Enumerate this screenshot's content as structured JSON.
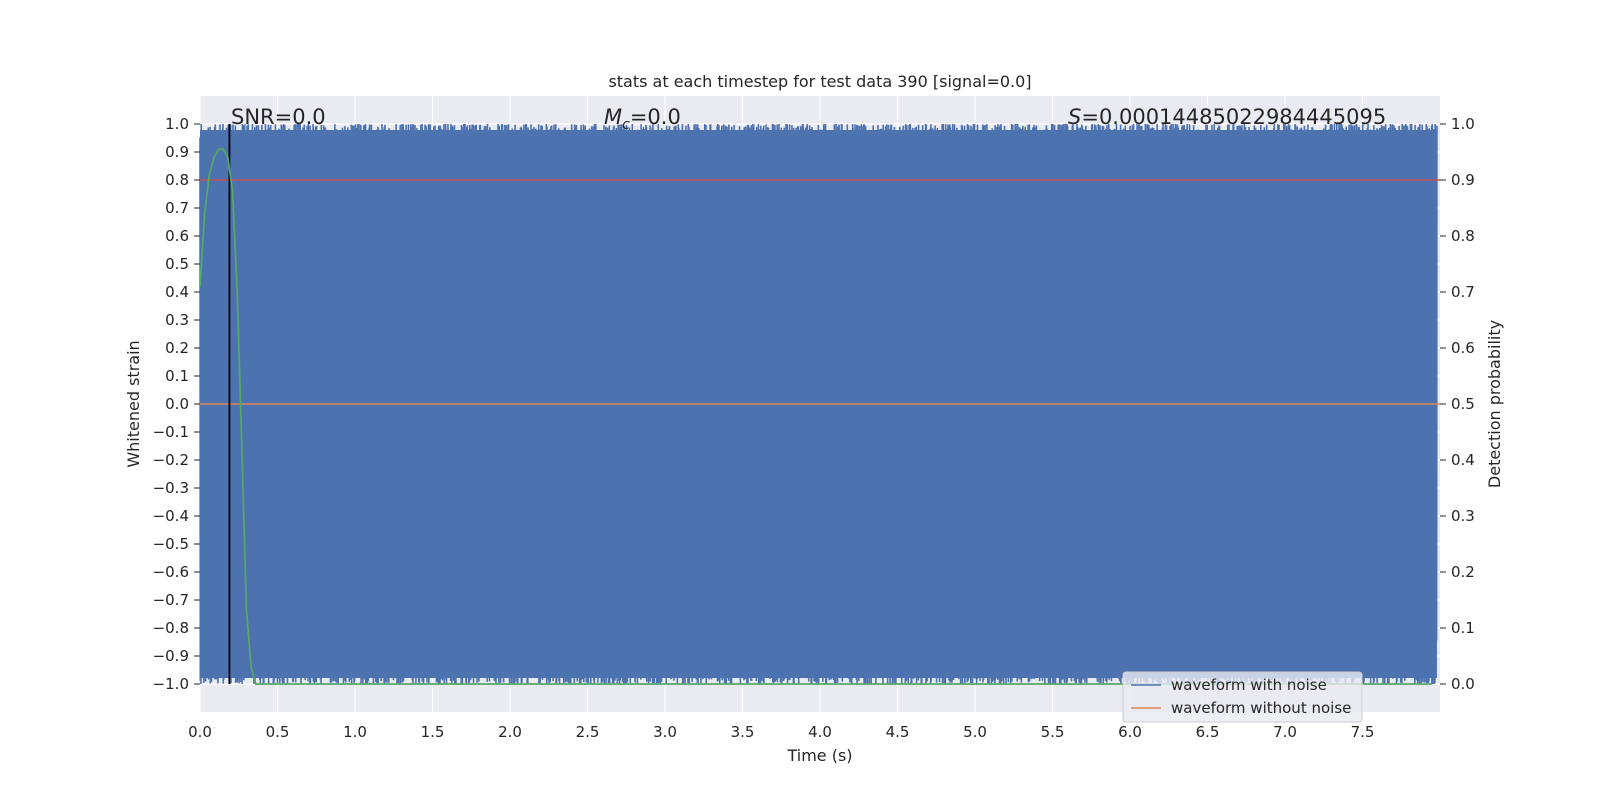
{
  "chart_data": {
    "type": "line",
    "title": "stats at each timestep for test data 390 [signal=0.0]",
    "xlabel": "Time (s)",
    "ylabel": "Whitened strain",
    "y2label": "Detection probability",
    "xlim": [
      0.0,
      8.0
    ],
    "ylim": [
      -1.1,
      1.1
    ],
    "y2lim": [
      -0.05,
      1.05
    ],
    "x_ticks": [
      "0.0",
      "0.5",
      "1.0",
      "1.5",
      "2.0",
      "2.5",
      "3.0",
      "3.5",
      "4.0",
      "4.5",
      "5.0",
      "5.5",
      "6.0",
      "6.5",
      "7.0",
      "7.5"
    ],
    "y_ticks": [
      "1.0",
      "0.9",
      "0.8",
      "0.7",
      "0.6",
      "0.5",
      "0.4",
      "0.3",
      "0.2",
      "0.1",
      "0.0",
      "−0.1",
      "−0.2",
      "−0.3",
      "−0.4",
      "−0.5",
      "−0.6",
      "−0.7",
      "−0.8",
      "−0.9",
      "−1.0"
    ],
    "y2_ticks": [
      "1.0",
      "0.9",
      "0.8",
      "0.7",
      "0.6",
      "0.5",
      "0.4",
      "0.3",
      "0.2",
      "0.1",
      "0.0"
    ],
    "annotations": {
      "snr": "SNR=0.0",
      "mc_symbol": "M",
      "mc_sub": "c",
      "mc_value": "=0.0",
      "s_symbol": "S",
      "s_value": "=0.00014485022984445095"
    },
    "series": [
      {
        "name": "waveform with noise",
        "color": "#4c72b0",
        "description_values": "dense noise filling approximately -1.0 to 1.0 over 0 to 8 s",
        "typical_range": [
          -1.0,
          1.0
        ]
      },
      {
        "name": "waveform without noise",
        "color": "#dd8452",
        "x": [
          0.0,
          8.0
        ],
        "y": [
          0.0,
          0.0
        ]
      },
      {
        "color": "#55a868",
        "axis": "right",
        "x": [
          0.0,
          0.03,
          0.06,
          0.09,
          0.12,
          0.15,
          0.18,
          0.21,
          0.24,
          0.27,
          0.3,
          0.33,
          0.36,
          0.5,
          1.0,
          2.0,
          3.0,
          4.0,
          5.0,
          6.0,
          7.0,
          7.95
        ],
        "y": [
          0.71,
          0.84,
          0.91,
          0.94,
          0.955,
          0.955,
          0.94,
          0.88,
          0.7,
          0.42,
          0.13,
          0.03,
          0.0,
          0.0,
          0.0,
          0.0,
          0.0,
          0.0,
          0.0,
          0.0,
          0.0,
          0.0
        ]
      }
    ],
    "hlines": [
      {
        "y": 0.8,
        "color": "#c44e52"
      }
    ],
    "vlines": [
      {
        "x": 0.19,
        "y_range": [
          -1.0,
          1.0
        ],
        "color": "#000000"
      }
    ],
    "legend": {
      "location": "lower-right",
      "entries": [
        "waveform with noise",
        "waveform without noise"
      ]
    },
    "style": {
      "plot_background": "#eaeaf2",
      "grid": true,
      "grid_color": "#ffffff"
    }
  }
}
